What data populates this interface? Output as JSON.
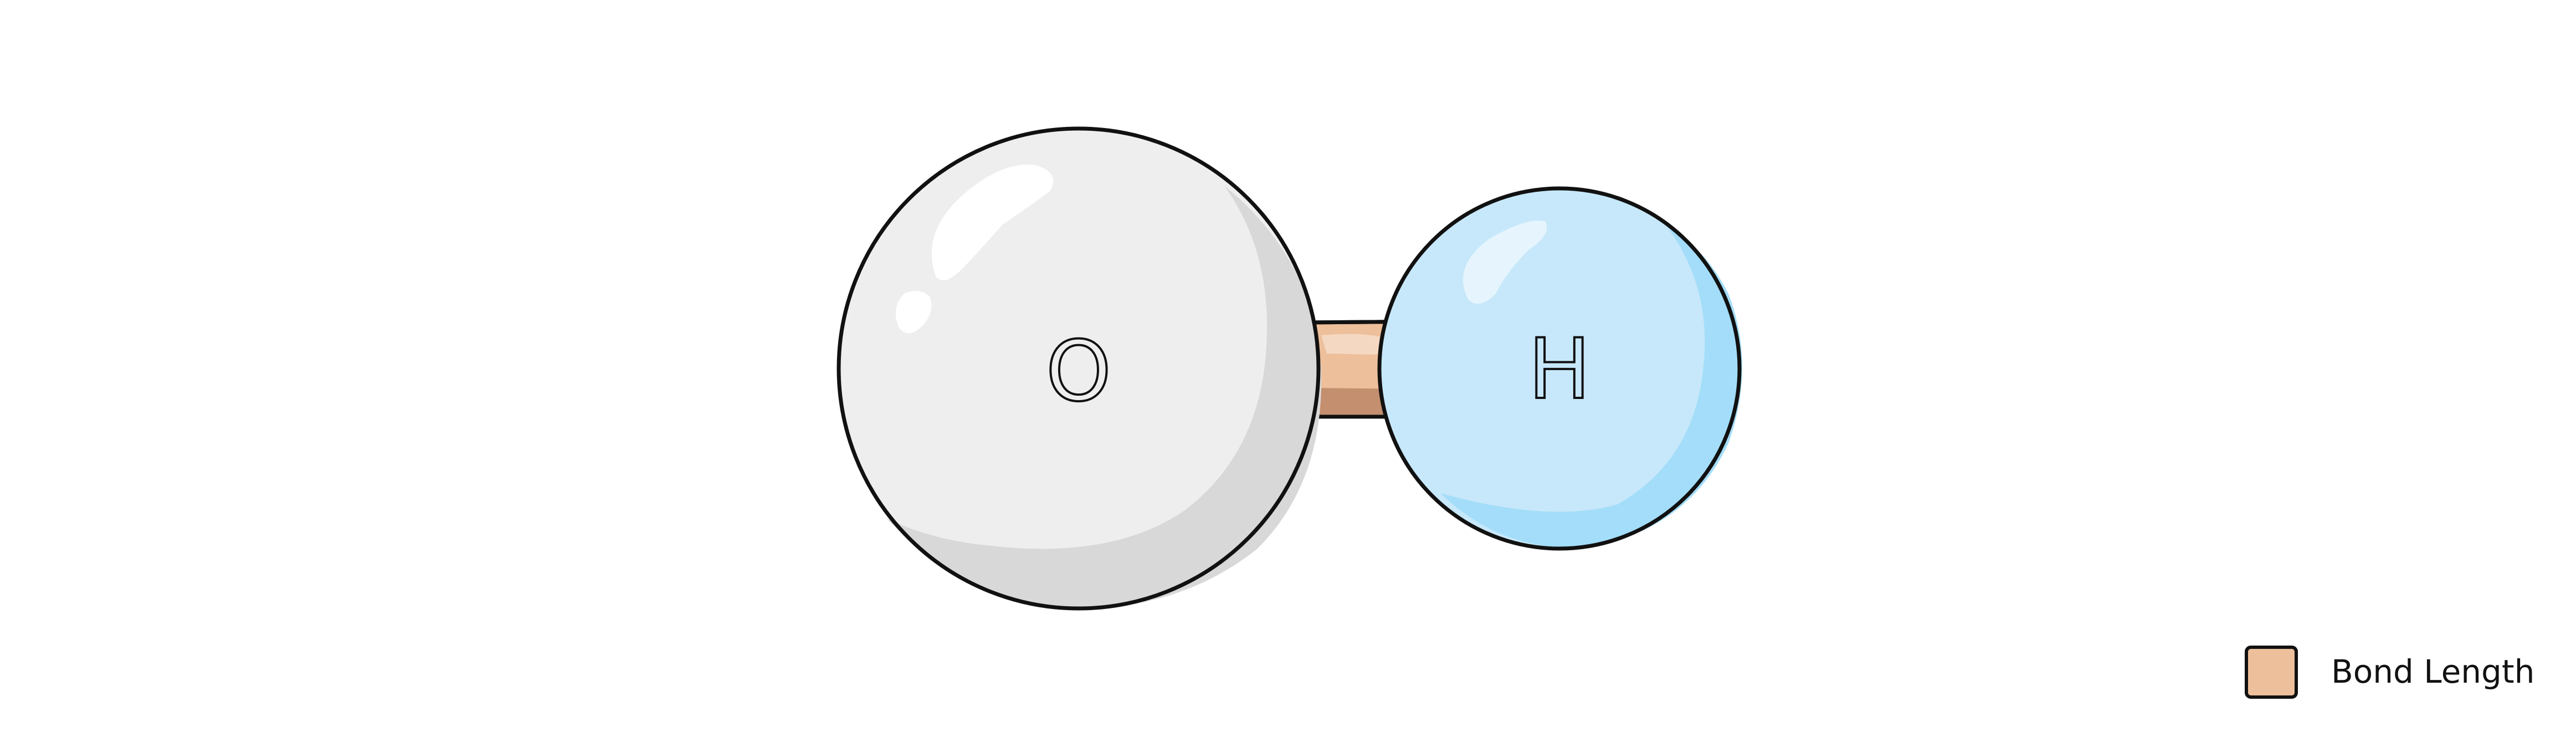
{
  "molecule": {
    "atoms": [
      {
        "symbol": "O",
        "color": "#EFEEEF",
        "shade": "#D9D8D9"
      },
      {
        "symbol": "H",
        "color": "#C7E8FA",
        "shade": "#A3DDF9"
      }
    ],
    "bond": {
      "color": "#EDBF9B",
      "shade": "#C48F6F"
    }
  },
  "legend": {
    "items": [
      {
        "label": "Bond Length",
        "color": "#EDBF9B"
      }
    ]
  }
}
